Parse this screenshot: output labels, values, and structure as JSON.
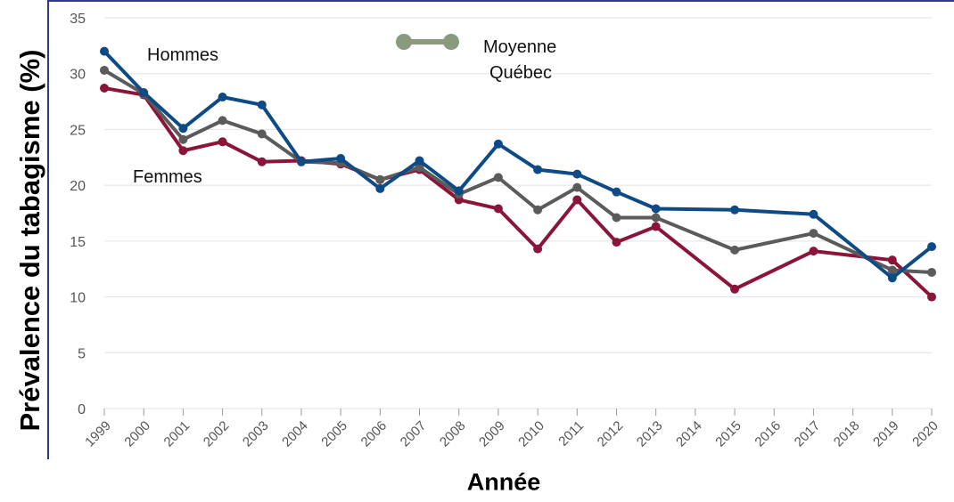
{
  "chart_data": {
    "type": "line",
    "title": "",
    "xlabel": "Année",
    "ylabel": "Prévalence du tabagisme (%)",
    "ylim": [
      0,
      35
    ],
    "yticks": [
      0,
      5,
      10,
      15,
      20,
      25,
      30,
      35
    ],
    "categories": [
      "1999",
      "2000",
      "2001",
      "2002",
      "2003",
      "2004",
      "2005",
      "2006",
      "2007",
      "2008",
      "2009",
      "2010",
      "2011",
      "2012",
      "2013",
      "2014",
      "2015",
      "2016",
      "2017",
      "2018",
      "2019",
      "2020"
    ],
    "grid": true,
    "series": [
      {
        "name": "Hommes",
        "color": "#0d4a86",
        "values": [
          32.0,
          28.3,
          25.1,
          27.9,
          27.2,
          22.1,
          22.4,
          19.7,
          22.2,
          19.5,
          23.7,
          21.4,
          21.0,
          19.4,
          17.9,
          null,
          17.8,
          null,
          17.4,
          null,
          11.7,
          14.5
        ]
      },
      {
        "name": "Moyenne Québec",
        "color": "#5b5b5b",
        "values": [
          30.3,
          28.2,
          24.1,
          25.8,
          24.6,
          22.1,
          22.0,
          20.5,
          21.6,
          19.2,
          20.7,
          17.8,
          19.8,
          17.1,
          17.1,
          null,
          14.2,
          null,
          15.7,
          null,
          12.4,
          12.2
        ]
      },
      {
        "name": "Femmes",
        "color": "#8a1538",
        "values": [
          28.7,
          28.1,
          23.1,
          23.9,
          22.1,
          22.2,
          21.9,
          20.5,
          21.4,
          18.7,
          17.9,
          14.3,
          18.7,
          14.9,
          16.3,
          null,
          10.7,
          null,
          14.1,
          null,
          13.3,
          10.0
        ]
      }
    ],
    "annotations": {
      "hommes": "Hommes",
      "femmes": "Femmes",
      "moyenne_line1": "Moyenne",
      "moyenne_line2": "Québec"
    },
    "legend_marker_color": "#8a9a7e"
  }
}
